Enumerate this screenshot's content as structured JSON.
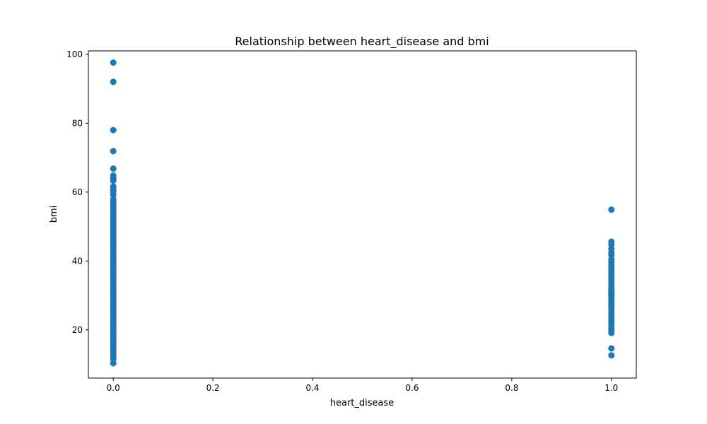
{
  "chart_data": {
    "type": "scatter",
    "title": "Relationship between heart_disease and bmi",
    "xlabel": "heart_disease",
    "ylabel": "bmi",
    "xlim": [
      -0.05,
      1.05
    ],
    "ylim": [
      6,
      101
    ],
    "xticks": [
      0.0,
      0.2,
      0.4,
      0.6,
      0.8,
      1.0
    ],
    "xtick_labels": [
      "0.0",
      "0.2",
      "0.4",
      "0.6",
      "0.8",
      "1.0"
    ],
    "yticks": [
      20,
      40,
      60,
      80,
      100
    ],
    "ytick_labels": [
      "20",
      "40",
      "60",
      "80",
      "100"
    ],
    "grid": false,
    "marker_color": "#1f77b4",
    "series": [
      {
        "x": [
          0,
          0,
          0,
          0,
          0,
          0,
          0,
          0,
          0,
          0,
          0,
          0,
          0,
          0,
          0,
          0,
          0,
          0,
          0,
          0,
          0,
          0,
          0,
          0,
          0,
          0,
          0,
          0,
          0,
          0,
          0,
          0,
          0,
          0,
          0,
          0,
          0,
          0,
          0,
          0,
          0,
          0,
          0,
          0,
          0,
          0,
          0,
          0,
          0,
          0,
          0,
          0,
          0,
          0,
          0,
          0,
          0,
          0,
          0,
          0,
          0,
          0,
          0,
          0,
          0,
          0,
          0,
          0,
          0,
          0,
          0,
          0,
          0,
          0,
          0,
          0,
          0,
          0,
          0,
          0,
          0,
          0,
          0,
          0,
          0,
          0,
          0,
          0,
          0,
          0,
          0,
          0,
          0,
          0,
          0,
          0,
          0,
          0,
          0,
          1,
          1,
          1,
          1,
          1,
          1,
          1,
          1,
          1,
          1,
          1,
          1,
          1,
          1,
          1,
          1,
          1,
          1,
          1,
          1,
          1,
          1,
          1,
          1,
          1,
          1,
          1,
          1,
          1,
          1,
          1,
          1,
          1,
          1,
          1,
          1,
          1,
          1,
          1,
          1,
          1,
          1,
          1
        ],
        "y": [
          97.6,
          92.0,
          78.0,
          71.9,
          66.8,
          64.8,
          64.0,
          63.3,
          61.6,
          61.0,
          60.2,
          59.2,
          57.9,
          57.3,
          56.6,
          56.0,
          55.3,
          54.6,
          53.9,
          53.2,
          52.5,
          51.8,
          51.1,
          50.4,
          49.7,
          49.0,
          48.3,
          47.6,
          46.9,
          46.2,
          45.5,
          44.8,
          44.1,
          43.4,
          42.7,
          42.0,
          41.3,
          40.6,
          39.9,
          39.2,
          38.5,
          37.8,
          37.1,
          36.4,
          35.7,
          35.0,
          34.3,
          33.6,
          32.9,
          32.2,
          31.5,
          30.8,
          30.1,
          29.4,
          28.7,
          28.0,
          27.3,
          26.6,
          25.9,
          25.2,
          24.5,
          23.8,
          23.1,
          22.4,
          21.7,
          21.0,
          20.3,
          19.6,
          18.9,
          18.2,
          17.5,
          16.8,
          16.1,
          15.4,
          14.7,
          14.0,
          13.4,
          12.8,
          12.1,
          11.5,
          10.3,
          48.5,
          45.0,
          41.5,
          37.5,
          33.5,
          29.5,
          25.5,
          22.0,
          19.0,
          16.5,
          44.0,
          40.0,
          36.0,
          32.0,
          28.0,
          24.0,
          20.5,
          17.8,
          14.6,
          12.6,
          54.9,
          45.6,
          44.8,
          43.6,
          42.5,
          41.6,
          40.5,
          39.7,
          38.9,
          38.0,
          37.2,
          36.4,
          35.6,
          34.8,
          34.0,
          33.2,
          32.4,
          31.6,
          30.8,
          30.0,
          29.2,
          28.4,
          27.6,
          26.8,
          26.0,
          25.2,
          24.4,
          23.6,
          22.8,
          22.0,
          21.2,
          20.4,
          19.6,
          19.1,
          36.8,
          33.6,
          30.4,
          27.2,
          24.0,
          29.8,
          31.2
        ]
      }
    ]
  }
}
